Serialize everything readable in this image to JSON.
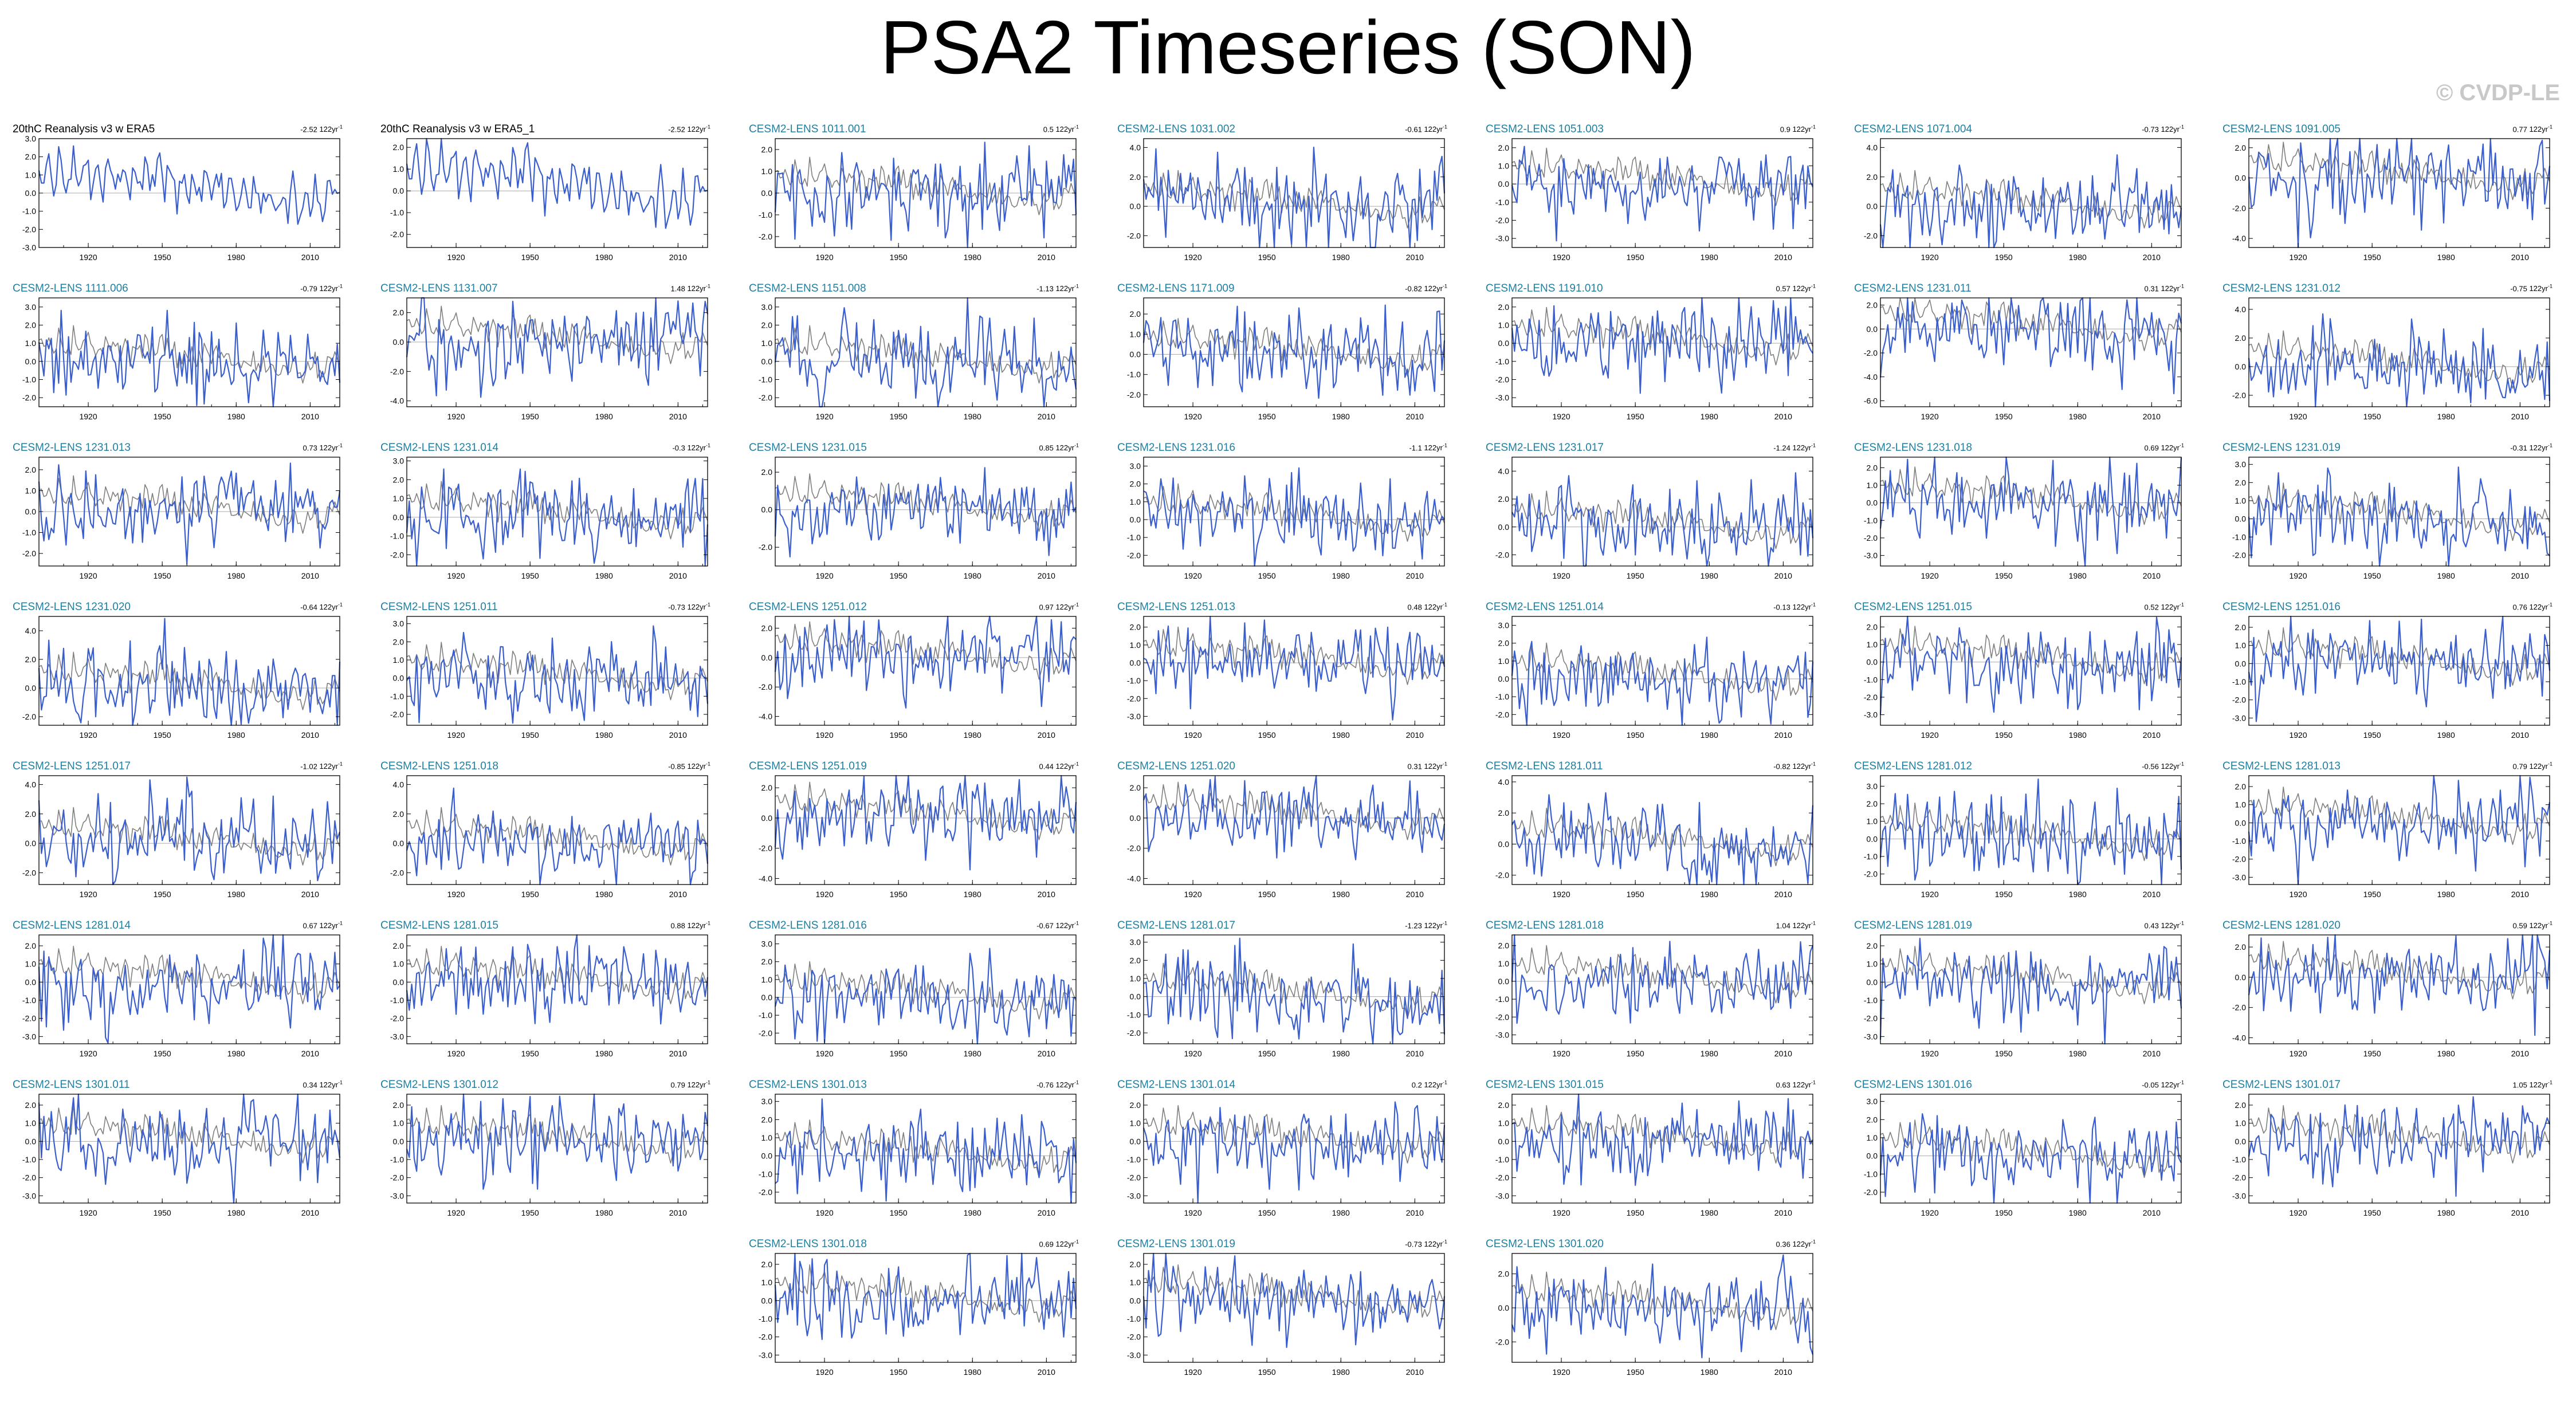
{
  "title": "PSA2 Timeseries (SON)",
  "copyright": "© CVDP-LE",
  "colors": {
    "member_series": "#3a5fcd",
    "observation_series": "#808080",
    "title_obs": "#000000",
    "title_member": "#1f7fa0",
    "zero_line": "#aaaaaa"
  },
  "trend_unit": "122yr",
  "chart_data": {
    "type": "line",
    "x_range": [
      1900,
      2022
    ],
    "x_ticks": [
      1920,
      1950,
      1980,
      2010
    ],
    "panels": [
      {
        "title": "20thC Reanalysis v3 w ERA5",
        "trend": "-2.52",
        "kind": "obs",
        "yticks": [
          "3.0",
          "2.0",
          "1.0",
          "0.0",
          "-1.0",
          "-2.0",
          "-3.0"
        ],
        "ylim": [
          -3,
          3
        ]
      },
      {
        "title": "20thC Reanalysis v3 w ERA5_1",
        "trend": "-2.52",
        "kind": "obs",
        "yticks": [
          "2.0",
          "1.0",
          "0.0",
          "-1.0",
          "-2.0"
        ],
        "ylim": [
          -2.6,
          2.4
        ]
      },
      {
        "title": "CESM2-LENS 1011.001",
        "trend": "0.5",
        "kind": "member",
        "yticks": [
          "2.0",
          "1.0",
          "0.0",
          "-1.0",
          "-2.0"
        ],
        "ylim": [
          -2.5,
          2.5
        ]
      },
      {
        "title": "CESM2-LENS 1031.002",
        "trend": "-0.61",
        "kind": "member",
        "yticks": [
          "4.0",
          "2.0",
          "0.0",
          "-2.0"
        ],
        "ylim": [
          -2.8,
          4.6
        ]
      },
      {
        "title": "CESM2-LENS 1051.003",
        "trend": "0.9",
        "kind": "member",
        "yticks": [
          "2.0",
          "1.0",
          "0.0",
          "-1.0",
          "-2.0",
          "-3.0"
        ],
        "ylim": [
          -3.5,
          2.5
        ]
      },
      {
        "title": "CESM2-LENS 1071.004",
        "trend": "-0.73",
        "kind": "member",
        "yticks": [
          "4.0",
          "2.0",
          "0.0",
          "-2.0"
        ],
        "ylim": [
          -2.8,
          4.6
        ]
      },
      {
        "title": "CESM2-LENS 1091.005",
        "trend": "0.77",
        "kind": "member",
        "yticks": [
          "2.0",
          "0.0",
          "-2.0",
          "-4.0"
        ],
        "ylim": [
          -4.6,
          2.6
        ]
      },
      {
        "title": "CESM2-LENS 1111.006",
        "trend": "-0.79",
        "kind": "member",
        "yticks": [
          "3.0",
          "2.0",
          "1.0",
          "0.0",
          "-1.0",
          "-2.0"
        ],
        "ylim": [
          -2.5,
          3.5
        ]
      },
      {
        "title": "CESM2-LENS 1131.007",
        "trend": "1.48",
        "kind": "member",
        "yticks": [
          "2.0",
          "0.0",
          "-2.0",
          "-4.0"
        ],
        "ylim": [
          -4.4,
          3.0
        ]
      },
      {
        "title": "CESM2-LENS 1151.008",
        "trend": "-1.13",
        "kind": "member",
        "yticks": [
          "3.0",
          "2.0",
          "1.0",
          "0.0",
          "-1.0",
          "-2.0"
        ],
        "ylim": [
          -2.5,
          3.5
        ]
      },
      {
        "title": "CESM2-LENS 1171.009",
        "trend": "-0.82",
        "kind": "member",
        "yticks": [
          "2.0",
          "1.0",
          "0.0",
          "-1.0",
          "-2.0"
        ],
        "ylim": [
          -2.6,
          2.8
        ]
      },
      {
        "title": "CESM2-LENS 1191.010",
        "trend": "0.57",
        "kind": "member",
        "yticks": [
          "2.0",
          "1.0",
          "0.0",
          "-1.0",
          "-2.0",
          "-3.0"
        ],
        "ylim": [
          -3.5,
          2.5
        ]
      },
      {
        "title": "CESM2-LENS 1231.011",
        "trend": "0.31",
        "kind": "member",
        "yticks": [
          "2.0",
          "0.0",
          "-2.0",
          "-4.0",
          "-6.0"
        ],
        "ylim": [
          -6.5,
          2.6
        ]
      },
      {
        "title": "CESM2-LENS 1231.012",
        "trend": "-0.75",
        "kind": "member",
        "yticks": [
          "4.0",
          "2.0",
          "0.0",
          "-2.0"
        ],
        "ylim": [
          -2.8,
          4.8
        ]
      },
      {
        "title": "CESM2-LENS 1231.013",
        "trend": "0.73",
        "kind": "member",
        "yticks": [
          "2.0",
          "1.0",
          "0.0",
          "-1.0",
          "-2.0"
        ],
        "ylim": [
          -2.6,
          2.6
        ]
      },
      {
        "title": "CESM2-LENS 1231.014",
        "trend": "-0.3",
        "kind": "member",
        "yticks": [
          "3.0",
          "2.0",
          "1.0",
          "0.0",
          "-1.0",
          "-2.0"
        ],
        "ylim": [
          -2.6,
          3.2
        ]
      },
      {
        "title": "CESM2-LENS 1231.015",
        "trend": "0.85",
        "kind": "member",
        "yticks": [
          "2.0",
          "0.0",
          "-2.0"
        ],
        "ylim": [
          -3.0,
          2.8
        ]
      },
      {
        "title": "CESM2-LENS 1231.016",
        "trend": "-1.1",
        "kind": "member",
        "yticks": [
          "3.0",
          "2.0",
          "1.0",
          "0.0",
          "-1.0",
          "-2.0"
        ],
        "ylim": [
          -2.6,
          3.5
        ]
      },
      {
        "title": "CESM2-LENS 1231.017",
        "trend": "-1.24",
        "kind": "member",
        "yticks": [
          "4.0",
          "2.0",
          "0.0",
          "-2.0"
        ],
        "ylim": [
          -2.8,
          5.0
        ]
      },
      {
        "title": "CESM2-LENS 1231.018",
        "trend": "0.69",
        "kind": "member",
        "yticks": [
          "2.0",
          "1.0",
          "0.0",
          "-1.0",
          "-2.0",
          "-3.0"
        ],
        "ylim": [
          -3.6,
          2.6
        ]
      },
      {
        "title": "CESM2-LENS 1231.019",
        "trend": "-0.31",
        "kind": "member",
        "yticks": [
          "3.0",
          "2.0",
          "1.0",
          "0.0",
          "-1.0",
          "-2.0"
        ],
        "ylim": [
          -2.6,
          3.4
        ]
      },
      {
        "title": "CESM2-LENS 1231.020",
        "trend": "-0.64",
        "kind": "member",
        "yticks": [
          "4.0",
          "2.0",
          "0.0",
          "-2.0"
        ],
        "ylim": [
          -2.6,
          5.0
        ]
      },
      {
        "title": "CESM2-LENS 1251.011",
        "trend": "-0.73",
        "kind": "member",
        "yticks": [
          "3.0",
          "2.0",
          "1.0",
          "0.0",
          "-1.0",
          "-2.0"
        ],
        "ylim": [
          -2.6,
          3.4
        ]
      },
      {
        "title": "CESM2-LENS 1251.012",
        "trend": "0.97",
        "kind": "member",
        "yticks": [
          "2.0",
          "0.0",
          "-2.0",
          "-4.0"
        ],
        "ylim": [
          -4.6,
          2.8
        ]
      },
      {
        "title": "CESM2-LENS 1251.013",
        "trend": "0.48",
        "kind": "member",
        "yticks": [
          "2.0",
          "1.0",
          "0.0",
          "-1.0",
          "-2.0",
          "-3.0"
        ],
        "ylim": [
          -3.5,
          2.6
        ]
      },
      {
        "title": "CESM2-LENS 1251.014",
        "trend": "-0.13",
        "kind": "member",
        "yticks": [
          "3.0",
          "2.0",
          "1.0",
          "0.0",
          "-1.0",
          "-2.0"
        ],
        "ylim": [
          -2.6,
          3.5
        ]
      },
      {
        "title": "CESM2-LENS 1251.015",
        "trend": "0.52",
        "kind": "member",
        "yticks": [
          "2.0",
          "1.0",
          "0.0",
          "-1.0",
          "-2.0",
          "-3.0"
        ],
        "ylim": [
          -3.6,
          2.6
        ]
      },
      {
        "title": "CESM2-LENS 1251.016",
        "trend": "0.76",
        "kind": "member",
        "yticks": [
          "2.0",
          "1.0",
          "0.0",
          "-1.0",
          "-2.0",
          "-3.0"
        ],
        "ylim": [
          -3.4,
          2.6
        ]
      },
      {
        "title": "CESM2-LENS 1251.017",
        "trend": "-1.02",
        "kind": "member",
        "yticks": [
          "4.0",
          "2.0",
          "0.0",
          "-2.0"
        ],
        "ylim": [
          -2.8,
          4.6
        ]
      },
      {
        "title": "CESM2-LENS 1251.018",
        "trend": "-0.85",
        "kind": "member",
        "yticks": [
          "4.0",
          "2.0",
          "0.0",
          "-2.0"
        ],
        "ylim": [
          -2.8,
          4.6
        ]
      },
      {
        "title": "CESM2-LENS 1251.019",
        "trend": "0.44",
        "kind": "member",
        "yticks": [
          "2.0",
          "0.0",
          "-2.0",
          "-4.0"
        ],
        "ylim": [
          -4.4,
          2.8
        ]
      },
      {
        "title": "CESM2-LENS 1251.020",
        "trend": "0.31",
        "kind": "member",
        "yticks": [
          "2.0",
          "0.0",
          "-2.0",
          "-4.0"
        ],
        "ylim": [
          -4.4,
          2.8
        ]
      },
      {
        "title": "CESM2-LENS 1281.011",
        "trend": "-0.82",
        "kind": "member",
        "yticks": [
          "4.0",
          "2.0",
          "0.0",
          "-2.0"
        ],
        "ylim": [
          -2.6,
          4.4
        ]
      },
      {
        "title": "CESM2-LENS 1281.012",
        "trend": "-0.56",
        "kind": "member",
        "yticks": [
          "3.0",
          "2.0",
          "1.0",
          "0.0",
          "-1.0",
          "-2.0"
        ],
        "ylim": [
          -2.6,
          3.6
        ]
      },
      {
        "title": "CESM2-LENS 1281.013",
        "trend": "0.79",
        "kind": "member",
        "yticks": [
          "2.0",
          "1.0",
          "0.0",
          "-1.0",
          "-2.0",
          "-3.0"
        ],
        "ylim": [
          -3.4,
          2.6
        ]
      },
      {
        "title": "CESM2-LENS 1281.014",
        "trend": "0.67",
        "kind": "member",
        "yticks": [
          "2.0",
          "1.0",
          "0.0",
          "-1.0",
          "-2.0",
          "-3.0"
        ],
        "ylim": [
          -3.4,
          2.6
        ]
      },
      {
        "title": "CESM2-LENS 1281.015",
        "trend": "0.88",
        "kind": "member",
        "yticks": [
          "2.0",
          "1.0",
          "0.0",
          "-1.0",
          "-2.0",
          "-3.0"
        ],
        "ylim": [
          -3.4,
          2.6
        ]
      },
      {
        "title": "CESM2-LENS 1281.016",
        "trend": "-0.67",
        "kind": "member",
        "yticks": [
          "3.0",
          "2.0",
          "1.0",
          "0.0",
          "-1.0",
          "-2.0"
        ],
        "ylim": [
          -2.6,
          3.5
        ]
      },
      {
        "title": "CESM2-LENS 1281.017",
        "trend": "-1.23",
        "kind": "member",
        "yticks": [
          "3.0",
          "2.0",
          "1.0",
          "0.0",
          "-1.0",
          "-2.0"
        ],
        "ylim": [
          -2.6,
          3.4
        ]
      },
      {
        "title": "CESM2-LENS 1281.018",
        "trend": "1.04",
        "kind": "member",
        "yticks": [
          "2.0",
          "1.0",
          "0.0",
          "-1.0",
          "-2.0",
          "-3.0"
        ],
        "ylim": [
          -3.5,
          2.6
        ]
      },
      {
        "title": "CESM2-LENS 1281.019",
        "trend": "0.43",
        "kind": "member",
        "yticks": [
          "2.0",
          "1.0",
          "0.0",
          "-1.0",
          "-2.0",
          "-3.0"
        ],
        "ylim": [
          -3.4,
          2.6
        ]
      },
      {
        "title": "CESM2-LENS 1281.020",
        "trend": "0.59",
        "kind": "member",
        "yticks": [
          "2.0",
          "0.0",
          "-2.0",
          "-4.0"
        ],
        "ylim": [
          -4.4,
          2.8
        ]
      },
      {
        "title": "CESM2-LENS 1301.011",
        "trend": "0.34",
        "kind": "member",
        "yticks": [
          "2.0",
          "1.0",
          "0.0",
          "-1.0",
          "-2.0",
          "-3.0"
        ],
        "ylim": [
          -3.4,
          2.6
        ]
      },
      {
        "title": "CESM2-LENS 1301.012",
        "trend": "0.79",
        "kind": "member",
        "yticks": [
          "2.0",
          "1.0",
          "0.0",
          "-1.0",
          "-2.0",
          "-3.0"
        ],
        "ylim": [
          -3.4,
          2.6
        ]
      },
      {
        "title": "CESM2-LENS 1301.013",
        "trend": "-0.76",
        "kind": "member",
        "yticks": [
          "3.0",
          "2.0",
          "1.0",
          "0.0",
          "-1.0",
          "-2.0"
        ],
        "ylim": [
          -2.6,
          3.4
        ]
      },
      {
        "title": "CESM2-LENS 1301.014",
        "trend": "0.2",
        "kind": "member",
        "yticks": [
          "2.0",
          "1.0",
          "0.0",
          "-1.0",
          "-2.0",
          "-3.0"
        ],
        "ylim": [
          -3.4,
          2.6
        ]
      },
      {
        "title": "CESM2-LENS 1301.015",
        "trend": "0.63",
        "kind": "member",
        "yticks": [
          "2.0",
          "1.0",
          "0.0",
          "-1.0",
          "-2.0",
          "-3.0"
        ],
        "ylim": [
          -3.4,
          2.6
        ]
      },
      {
        "title": "CESM2-LENS 1301.016",
        "trend": "-0.05",
        "kind": "member",
        "yticks": [
          "3.0",
          "2.0",
          "1.0",
          "0.0",
          "-1.0",
          "-2.0"
        ],
        "ylim": [
          -2.6,
          3.4
        ]
      },
      {
        "title": "CESM2-LENS 1301.017",
        "trend": "1.05",
        "kind": "member",
        "yticks": [
          "2.0",
          "1.0",
          "0.0",
          "-1.0",
          "-2.0",
          "-3.0"
        ],
        "ylim": [
          -3.4,
          2.6
        ]
      },
      {
        "title": "CESM2-LENS 1301.018",
        "trend": "0.69",
        "kind": "member",
        "yticks": [
          "2.0",
          "1.0",
          "0.0",
          "-1.0",
          "-2.0",
          "-3.0"
        ],
        "ylim": [
          -3.4,
          2.6
        ]
      },
      {
        "title": "CESM2-LENS 1301.019",
        "trend": "-0.73",
        "kind": "member",
        "yticks": [
          "2.0",
          "1.0",
          "0.0",
          "-1.0",
          "-2.0",
          "-3.0"
        ],
        "ylim": [
          -3.4,
          2.6
        ]
      },
      {
        "title": "CESM2-LENS 1301.020",
        "trend": "0.36",
        "kind": "member",
        "yticks": [
          "2.0",
          "0.0",
          "-2.0"
        ],
        "ylim": [
          -3.2,
          3.2
        ]
      }
    ]
  }
}
